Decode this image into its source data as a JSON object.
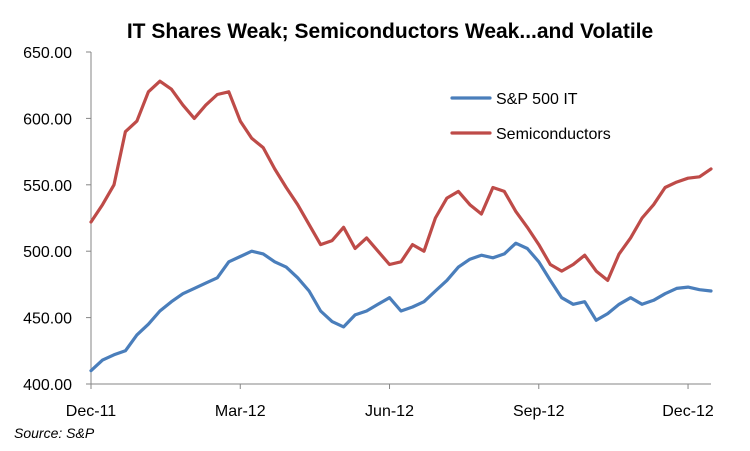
{
  "chart_data": {
    "type": "line",
    "title": "IT Shares Weak; Semiconductors Weak...and Volatile",
    "source": "Source: S&P",
    "xlabel": "",
    "ylabel": "",
    "ylim": [
      400,
      650
    ],
    "yticks": [
      "400.00",
      "450.00",
      "500.00",
      "550.00",
      "600.00",
      "650.00"
    ],
    "xticks": [
      "Dec-11",
      "Mar-12",
      "Jun-12",
      "Sep-12",
      "Dec-12"
    ],
    "xtick_positions": [
      0,
      13,
      26,
      39,
      52
    ],
    "x_range": [
      0,
      54
    ],
    "legend_position": "upper-right",
    "colors": {
      "sp500it": "#4A7EBB",
      "semis": "#BE4B48",
      "axis": "#868686"
    },
    "series": [
      {
        "name": "S&P 500 IT",
        "color": "#4A7EBB",
        "x": [
          0,
          1,
          2,
          3,
          4,
          5,
          6,
          7,
          8,
          9,
          10,
          11,
          12,
          13,
          14,
          15,
          16,
          17,
          18,
          19,
          20,
          21,
          22,
          23,
          24,
          25,
          26,
          27,
          28,
          29,
          30,
          31,
          32,
          33,
          34,
          35,
          36,
          37,
          38,
          39,
          40,
          41,
          42,
          43,
          44,
          45,
          46,
          47,
          48,
          49,
          50,
          51,
          52,
          53,
          54
        ],
        "values": [
          410,
          418,
          422,
          425,
          437,
          445,
          455,
          462,
          468,
          472,
          476,
          480,
          492,
          496,
          500,
          498,
          492,
          488,
          480,
          470,
          455,
          447,
          443,
          452,
          455,
          460,
          465,
          455,
          458,
          462,
          470,
          478,
          488,
          494,
          497,
          495,
          498,
          506,
          502,
          492,
          478,
          465,
          460,
          462,
          448,
          453,
          460,
          465,
          460,
          463,
          468,
          472,
          473,
          471,
          470
        ]
      },
      {
        "name": "Semiconductors",
        "color": "#BE4B48",
        "x": [
          0,
          1,
          2,
          3,
          4,
          5,
          6,
          7,
          8,
          9,
          10,
          11,
          12,
          13,
          14,
          15,
          16,
          17,
          18,
          19,
          20,
          21,
          22,
          23,
          24,
          25,
          26,
          27,
          28,
          29,
          30,
          31,
          32,
          33,
          34,
          35,
          36,
          37,
          38,
          39,
          40,
          41,
          42,
          43,
          44,
          45,
          46,
          47,
          48,
          49,
          50,
          51,
          52,
          53,
          54
        ],
        "values": [
          522,
          535,
          550,
          590,
          598,
          620,
          628,
          622,
          610,
          600,
          610,
          618,
          620,
          598,
          585,
          578,
          562,
          548,
          535,
          520,
          505,
          508,
          518,
          502,
          510,
          500,
          490,
          492,
          505,
          500,
          525,
          540,
          545,
          535,
          528,
          548,
          545,
          530,
          518,
          505,
          490,
          485,
          490,
          497,
          485,
          478,
          498,
          510,
          525,
          535,
          548,
          552,
          555,
          556,
          562
        ]
      }
    ]
  }
}
